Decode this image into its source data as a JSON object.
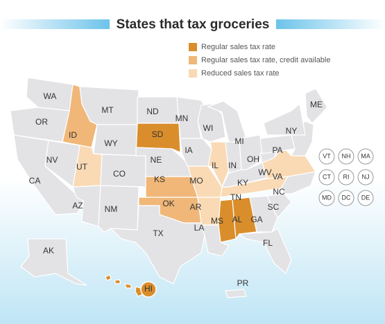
{
  "title": "States that tax groceries",
  "legend": {
    "items": [
      {
        "label": "Regular sales tax rate",
        "color": "#d98e2b",
        "states": [
          "SD",
          "MS",
          "AL",
          "HI"
        ]
      },
      {
        "label": "Regular sales tax rate, credit available",
        "color": "#f0b778",
        "states": [
          "ID",
          "KS",
          "OK"
        ]
      },
      {
        "label": "Reduced  sales tax rate",
        "color": "#f9dab5",
        "states": [
          "UT",
          "IL",
          "MO",
          "AR",
          "TN",
          "VA"
        ]
      }
    ]
  },
  "other_states": {
    "color": "#e3e3e6",
    "states": [
      "WA",
      "OR",
      "CA",
      "NV",
      "MT",
      "WY",
      "AZ",
      "CO",
      "NM",
      "ND",
      "NE",
      "TX",
      "MN",
      "IA",
      "LA",
      "WI",
      "MI",
      "IN",
      "OH",
      "KY",
      "GA",
      "FL",
      "SC",
      "NC",
      "WV",
      "PA",
      "NY",
      "ME",
      "AK",
      "PR"
    ]
  },
  "small_states": [
    "VT",
    "NH",
    "MA",
    "CT",
    "RI",
    "NJ",
    "MD",
    "DC",
    "DE"
  ]
}
